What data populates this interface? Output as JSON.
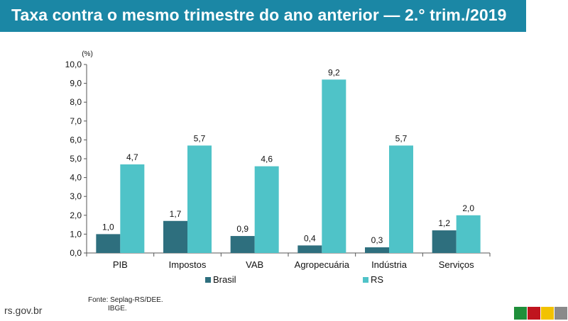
{
  "title": "Taxa contra o mesmo trimestre do ano anterior — 2.° trim./2019",
  "source": {
    "line1": "Fonte: Seplag-RS/DEE.",
    "line2": "IBGE."
  },
  "site": "rs.gov.br",
  "colors": {
    "title_bar": "#1b87a5",
    "brasil": "#2e6f7e",
    "rs": "#4fc3c8",
    "flag": [
      "#1f8f3a",
      "#c0141e",
      "#f2c200",
      "#8a8a8a"
    ]
  },
  "chart_data": {
    "type": "bar",
    "unit_label": "(%)",
    "categories": [
      "PIB",
      "Impostos",
      "VAB",
      "Agropecuária",
      "Indústria",
      "Serviços"
    ],
    "series": [
      {
        "name": "Brasil",
        "values": [
          1.0,
          1.7,
          0.9,
          0.4,
          0.3,
          1.2
        ],
        "labels": [
          "1,0",
          "1,7",
          "0,9",
          "0,4",
          "0,3",
          "1,2"
        ]
      },
      {
        "name": "RS",
        "values": [
          4.7,
          5.7,
          4.6,
          9.2,
          5.7,
          2.0
        ],
        "labels": [
          "4,7",
          "5,7",
          "4,6",
          "9,2",
          "5,7",
          "2,0"
        ]
      }
    ],
    "ylim": [
      0,
      10
    ],
    "yticks": [
      "0,0",
      "1,0",
      "2,0",
      "3,0",
      "4,0",
      "5,0",
      "6,0",
      "7,0",
      "8,0",
      "9,0",
      "10,0"
    ],
    "grid": false,
    "legend": "bottom"
  }
}
